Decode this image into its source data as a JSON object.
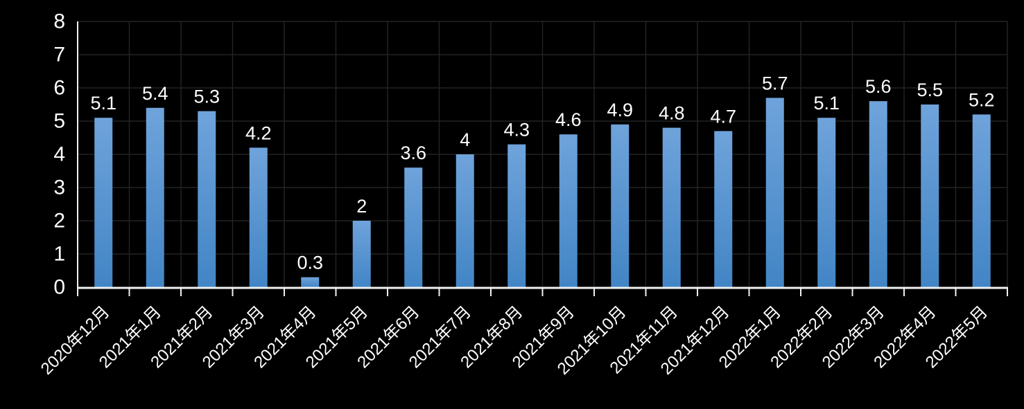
{
  "chart_data": {
    "type": "bar",
    "title": "",
    "categories": [
      "2020年12月",
      "2021年1月",
      "2021年2月",
      "2021年3月",
      "2021年4月",
      "2021年5月",
      "2021年6月",
      "2021年7月",
      "2021年8月",
      "2021年9月",
      "2021年10月",
      "2021年11月",
      "2021年12月",
      "2022年1月",
      "2022年2月",
      "2022年3月",
      "2022年4月",
      "2022年5月"
    ],
    "values": [
      5.1,
      5.4,
      5.3,
      4.2,
      0.3,
      2,
      3.6,
      4,
      4.3,
      4.6,
      4.9,
      4.8,
      4.7,
      5.7,
      5.1,
      5.6,
      5.5,
      5.2
    ],
    "value_labels": [
      "5.1",
      "5.4",
      "5.3",
      "4.2",
      "0.3",
      "2",
      "3.6",
      "4",
      "4.3",
      "4.6",
      "4.9",
      "4.8",
      "4.7",
      "5.7",
      "5.1",
      "5.6",
      "5.5",
      "5.2"
    ],
    "xlabel": "",
    "ylabel": "",
    "ylim": [
      0,
      8
    ],
    "ytick_labels": [
      "0",
      "1",
      "2",
      "3",
      "4",
      "5",
      "6",
      "7",
      "8"
    ],
    "grid": true,
    "legend_position": "none",
    "colors": {
      "background": "#000000",
      "bar_gradient_top": "#6FA3DB",
      "bar_gradient_bottom": "#4285C5",
      "gridline": "#232323",
      "axis_line": "#F2F2F2",
      "tick": "#F2F2F2",
      "text": "#FFFFFF"
    }
  }
}
